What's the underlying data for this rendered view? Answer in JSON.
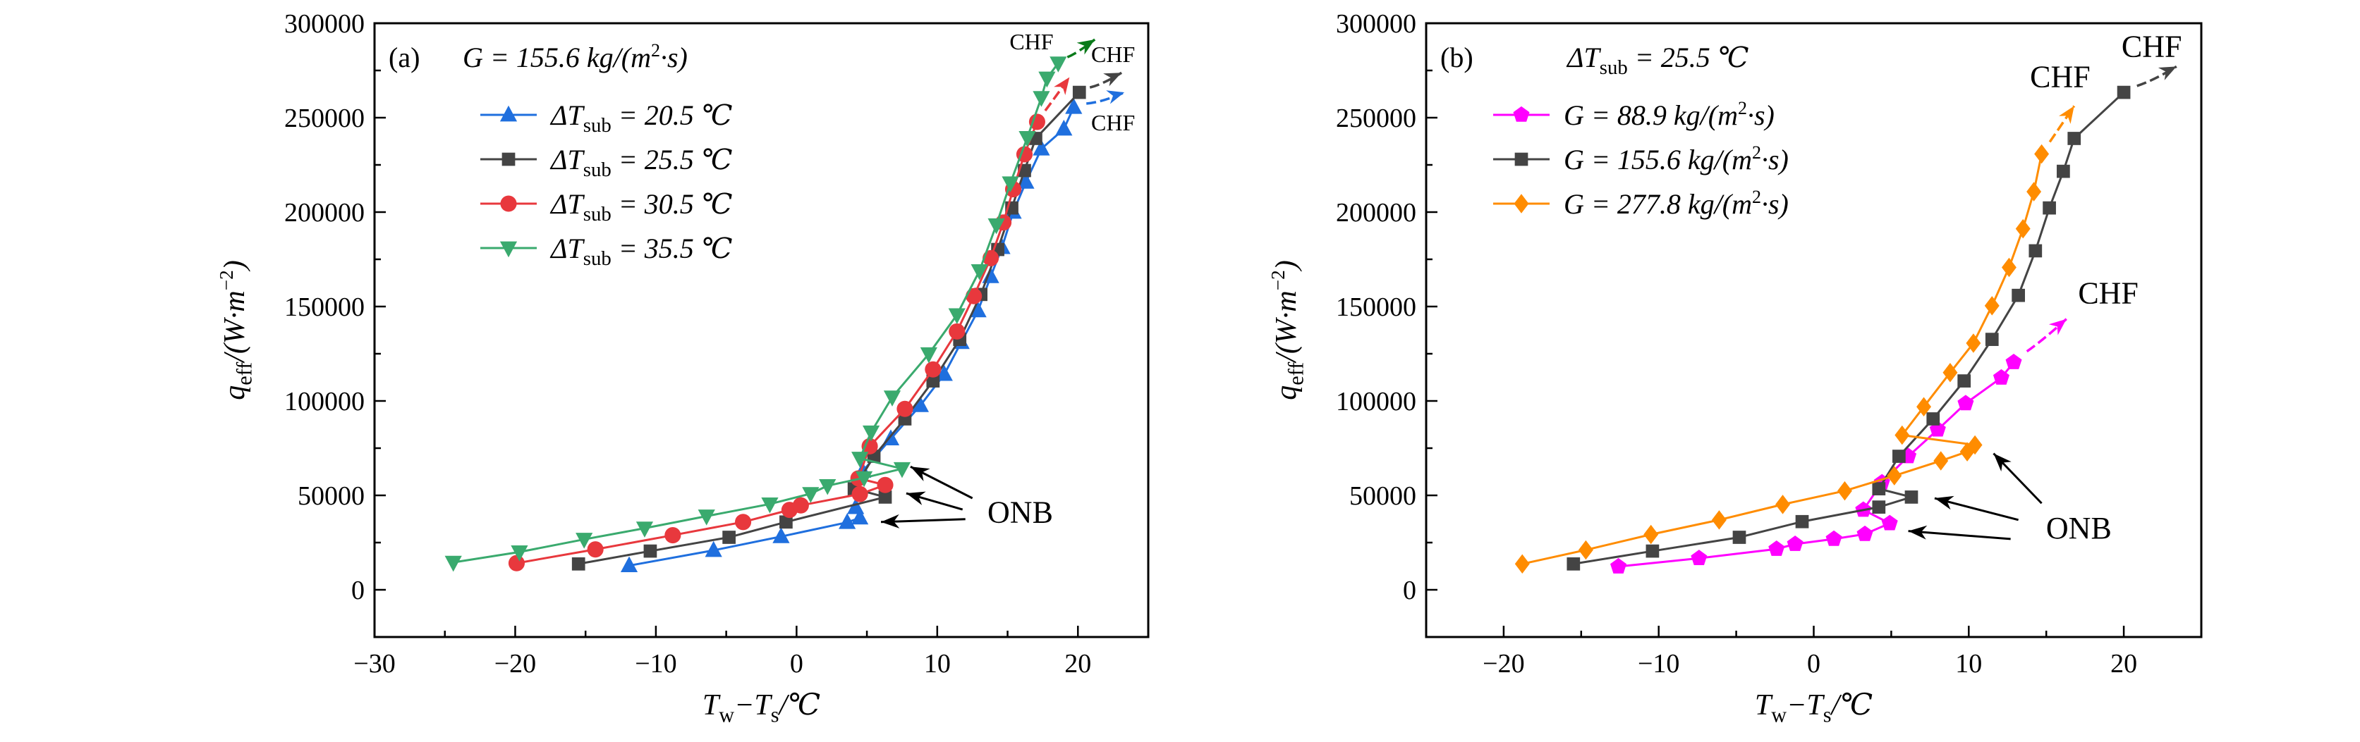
{
  "chart_data": [
    {
      "type": "line",
      "panel_label": "(a)",
      "title": "G = 155.6 kg/(m^{2}·s)",
      "xlabel": "T_{w}−T_{s}/℃",
      "ylabel": "q_{eff}/(W·m^{−2})",
      "xlim": [
        -30,
        25
      ],
      "ylim": [
        -25000,
        300000
      ],
      "xticks": [
        -30,
        -20,
        -10,
        0,
        10,
        20
      ],
      "xtick_labels": [
        "−30",
        "−20",
        "−10",
        "0",
        "10",
        "20"
      ],
      "yticks": [
        0,
        50000,
        100000,
        150000,
        200000,
        250000,
        300000
      ],
      "ytick_labels": [
        "0",
        "50000",
        "100000",
        "150000",
        "200000",
        "250000",
        "300000"
      ],
      "legend_position": "top-left",
      "series": [
        {
          "name": "ΔT_{sub} = 20.5 ℃",
          "color": "#1f6fde",
          "marker": "triangle-up",
          "x": [
            -11.9,
            -5.9,
            -1.1,
            3.6,
            4.5,
            4.2,
            4.7,
            6.7,
            8.8,
            10.5,
            11.7,
            12.9,
            13.8,
            14.6,
            15.4,
            16.3,
            17.4,
            19.0,
            19.7
          ],
          "y": [
            12800,
            20900,
            28200,
            35700,
            38100,
            43600,
            62800,
            80000,
            97600,
            114100,
            131000,
            147800,
            165900,
            181300,
            200000,
            215900,
            233500,
            244000,
            255500
          ],
          "chf_arrow_to": [
            23.3,
            263400
          ]
        },
        {
          "name": "ΔT_{sub} = 25.5 ℃",
          "color": "#444444",
          "marker": "square",
          "x": [
            -15.5,
            -10.4,
            -4.8,
            -0.75,
            6.3,
            4.1,
            5.5,
            7.7,
            9.7,
            11.6,
            13.1,
            14.3,
            15.3,
            16.2,
            17.0,
            20.1
          ],
          "y": [
            13700,
            20500,
            27800,
            35900,
            49100,
            53500,
            70700,
            90500,
            110600,
            132600,
            156400,
            180200,
            202200,
            222000,
            239000,
            263400
          ],
          "chf_arrow_to": [
            23.1,
            273800
          ]
        },
        {
          "name": "ΔT_{sub} = 30.5 ℃",
          "color": "#e8383d",
          "marker": "circle",
          "x": [
            -19.9,
            -14.3,
            -8.8,
            -3.8,
            -0.5,
            0.3,
            4.5,
            6.3,
            4.4,
            5.2,
            7.7,
            9.7,
            11.4,
            12.6,
            13.8,
            14.7,
            15.4,
            16.2,
            17.1
          ],
          "y": [
            14100,
            21400,
            28900,
            35900,
            42300,
            44700,
            50700,
            55500,
            59000,
            76000,
            95800,
            116700,
            136800,
            155500,
            175600,
            194500,
            212100,
            230600,
            247800
          ],
          "chf_arrow_to": [
            19.4,
            271400
          ]
        },
        {
          "name": "ΔT_{sub} = 35.5 ℃",
          "color": "#3aaa6e",
          "marker": "triangle-down",
          "x": [
            -24.4,
            -19.7,
            -15.1,
            -10.8,
            -6.4,
            -1.9,
            1.0,
            2.2,
            4.8,
            7.5,
            4.5,
            5.3,
            6.8,
            9.4,
            11.4,
            13.0,
            14.2,
            15.2,
            16.4,
            17.4,
            17.8,
            18.6
          ],
          "y": [
            14500,
            20000,
            26700,
            32600,
            39000,
            45400,
            50900,
            55100,
            59300,
            64100,
            69600,
            83500,
            102000,
            124900,
            145600,
            168900,
            193200,
            215400,
            239400,
            260600,
            270900,
            278900
          ],
          "chf_arrow_to": [
            21.2,
            291400
          ],
          "arrow_color": "#0a7a1a"
        }
      ],
      "annotations": [
        {
          "text": "ONB",
          "at": [
            15.9,
            41400
          ],
          "size": "large",
          "arrows": [
            [
              [
                12.5,
                48500
              ],
              [
                8.1,
                65200
              ]
            ],
            [
              [
                11.8,
                42500
              ],
              [
                7.8,
                51100
              ]
            ],
            [
              [
                12.0,
                37400
              ],
              [
                6.0,
                35900
              ]
            ]
          ]
        },
        {
          "text": "CHF",
          "at": [
            16.7,
            290300
          ],
          "size": "small",
          "arrows": []
        },
        {
          "text": "CHF",
          "at": [
            22.5,
            283700
          ],
          "size": "small",
          "arrows": []
        },
        {
          "text": "CHF",
          "at": [
            22.5,
            247400
          ],
          "size": "small",
          "arrows": []
        }
      ]
    },
    {
      "type": "line",
      "panel_label": "(b)",
      "title": "ΔT_{sub} = 25.5 ℃",
      "xlabel": "T_{w}−T_{s}/℃",
      "ylabel": "q_{eff}/(W·m^{−2})",
      "xlim": [
        -25,
        25
      ],
      "ylim": [
        -25000,
        300000
      ],
      "xticks": [
        -20,
        -10,
        0,
        10,
        20
      ],
      "xtick_labels": [
        "−20",
        "−10",
        "0",
        "10",
        "20"
      ],
      "yticks": [
        0,
        50000,
        100000,
        150000,
        200000,
        250000,
        300000
      ],
      "ytick_labels": [
        "0",
        "50000",
        "100000",
        "150000",
        "200000",
        "250000",
        "300000"
      ],
      "legend_position": "top-left",
      "series": [
        {
          "name": "G = 88.9 kg/(m^{2}·s)",
          "color": "#ff00ff",
          "marker": "pentagon",
          "x": [
            -12.6,
            -7.4,
            -2.4,
            -1.2,
            1.3,
            3.3,
            4.9,
            3.2,
            4.4,
            6.1,
            8.0,
            9.8,
            12.1,
            12.9
          ],
          "y": [
            12300,
            16700,
            21600,
            24200,
            26900,
            29500,
            35200,
            42300,
            56800,
            70700,
            84800,
            98700,
            112300,
            120500
          ],
          "chf_arrow_to": [
            16.3,
            143400
          ]
        },
        {
          "name": "G = 155.6 kg/(m^{2}·s)",
          "color": "#444444",
          "marker": "square",
          "x": [
            -15.5,
            -10.4,
            -4.8,
            -0.75,
            4.2,
            6.3,
            4.2,
            5.5,
            7.7,
            9.7,
            11.5,
            13.2,
            14.3,
            15.2,
            16.1,
            16.8,
            20.0
          ],
          "y": [
            13700,
            20500,
            27800,
            36100,
            43800,
            49100,
            53500,
            70700,
            90500,
            110600,
            132600,
            155900,
            179500,
            202200,
            221600,
            239000,
            263400
          ],
          "chf_arrow_to": [
            23.4,
            277100
          ]
        },
        {
          "name": "G = 277.8 kg/(m^{2}·s)",
          "color": "#ff8c00",
          "marker": "diamond",
          "x": [
            -18.8,
            -14.7,
            -10.5,
            -6.1,
            -2.0,
            2.0,
            5.2,
            8.2,
            9.9,
            10.4,
            5.7,
            7.1,
            8.8,
            10.3,
            11.5,
            12.6,
            13.5,
            14.2,
            14.7
          ],
          "y": [
            13700,
            21100,
            29300,
            37000,
            45200,
            52400,
            60400,
            68300,
            73100,
            76700,
            81900,
            96900,
            115000,
            130600,
            150400,
            170700,
            191200,
            210800,
            230800
          ],
          "chf_arrow_to": [
            16.8,
            256200
          ]
        }
      ],
      "annotations": [
        {
          "text": "ONB",
          "at": [
            17.1,
            33000
          ],
          "size": "large",
          "arrows": [
            [
              [
                14.7,
                45800
              ],
              [
                11.6,
                72200
              ]
            ],
            [
              [
                13.2,
                37000
              ],
              [
                7.8,
                48500
              ]
            ],
            [
              [
                12.7,
                26900
              ],
              [
                6.1,
                31100
              ]
            ]
          ]
        },
        {
          "text": "CHF",
          "at": [
            21.8,
            288100
          ],
          "size": "large",
          "arrows": []
        },
        {
          "text": "CHF",
          "at": [
            15.9,
            272000
          ],
          "size": "large",
          "arrows": []
        },
        {
          "text": "CHF",
          "at": [
            19.0,
            157500
          ],
          "size": "large",
          "arrows": []
        }
      ]
    }
  ]
}
